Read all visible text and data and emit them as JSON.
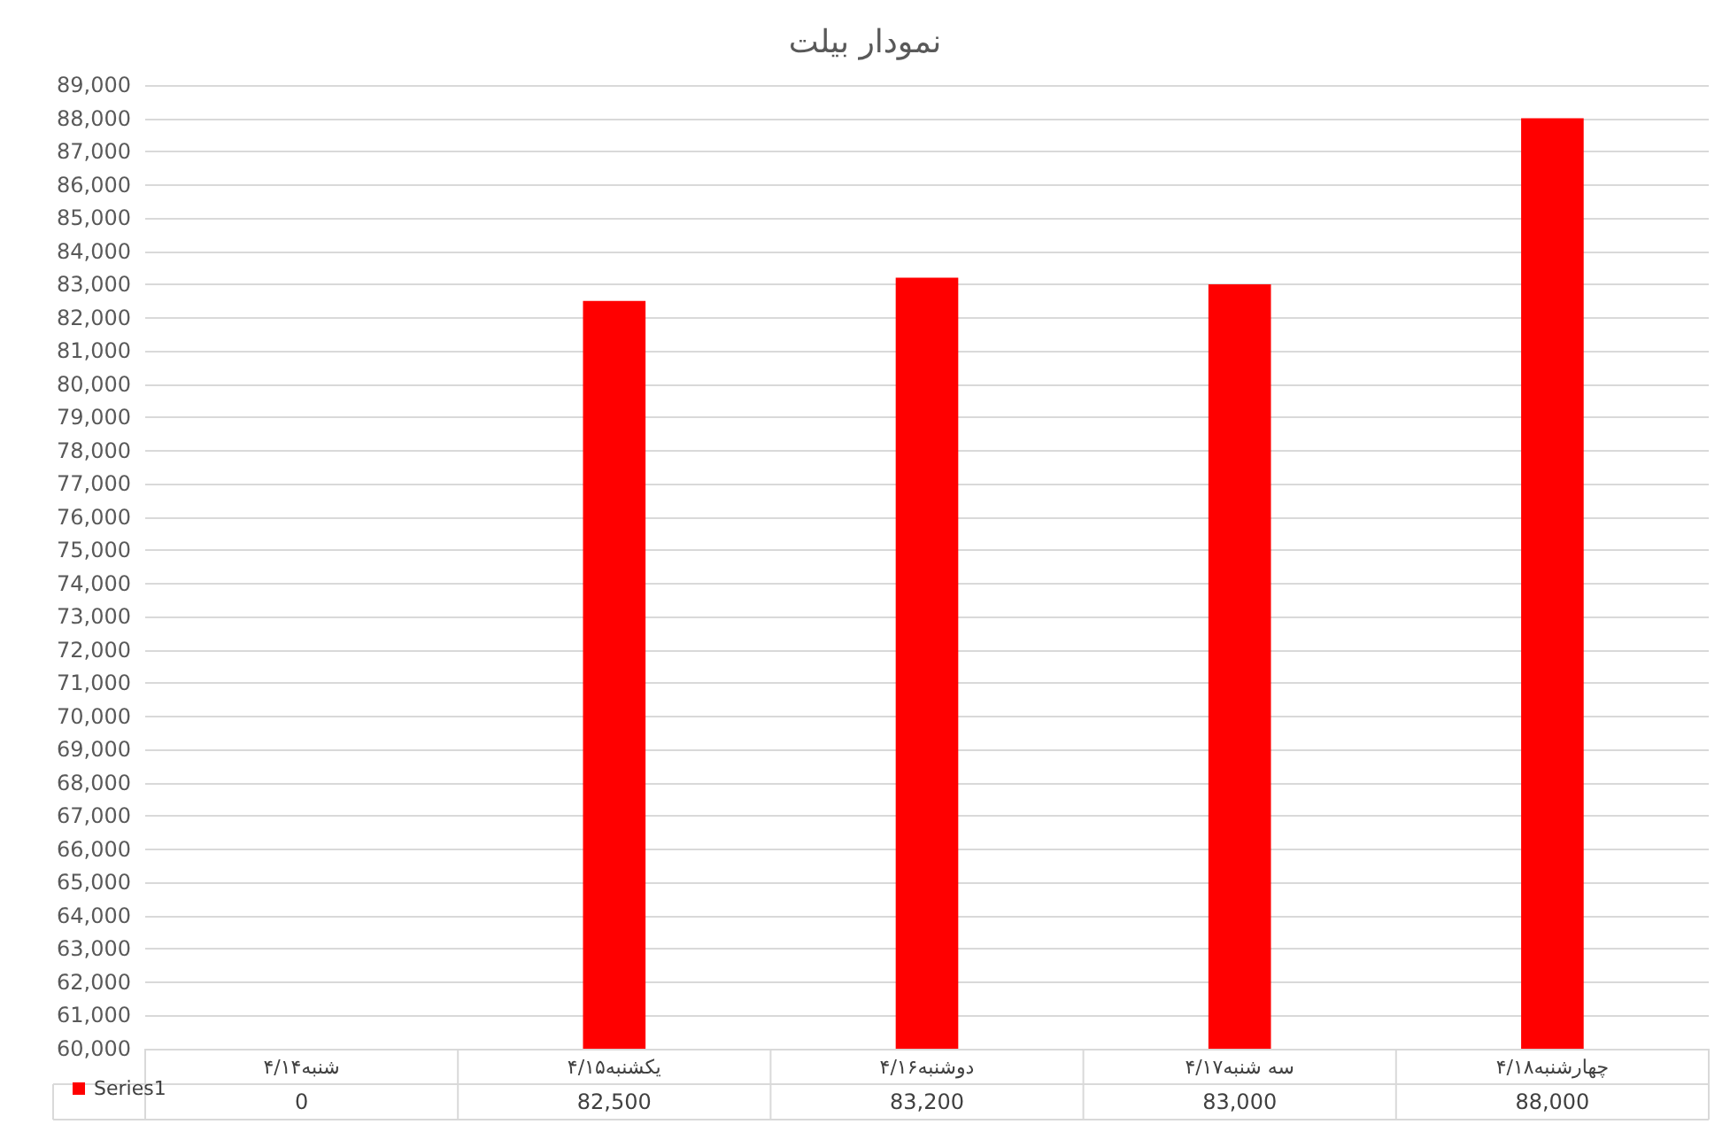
{
  "chart_data": {
    "type": "bar",
    "title": "نمودار بیلت",
    "categories": [
      "شنبه۴/۱۴",
      "یکشنبه۴/۱۵",
      "دوشنبه۴/۱۶",
      "سه شنبه۴/۱۷",
      "چهارشنبه۴/۱۸"
    ],
    "series": [
      {
        "name": "Series1",
        "color": "#ff0000",
        "values": [
          null,
          82500,
          83200,
          83000,
          88000
        ]
      }
    ],
    "value_labels": [
      "0",
      "82,500",
      "83,200",
      "83,000",
      "88,000"
    ],
    "ylim": [
      60000,
      89000
    ],
    "yticks": [
      {
        "value": 60000,
        "label": "60,000"
      },
      {
        "value": 61000,
        "label": "61,000"
      },
      {
        "value": 62000,
        "label": "62,000"
      },
      {
        "value": 63000,
        "label": "63,000"
      },
      {
        "value": 64000,
        "label": "64,000"
      },
      {
        "value": 65000,
        "label": "65,000"
      },
      {
        "value": 66000,
        "label": "66,000"
      },
      {
        "value": 67000,
        "label": "67,000"
      },
      {
        "value": 68000,
        "label": "68,000"
      },
      {
        "value": 69000,
        "label": "69,000"
      },
      {
        "value": 70000,
        "label": "70,000"
      },
      {
        "value": 71000,
        "label": "71,000"
      },
      {
        "value": 72000,
        "label": "72,000"
      },
      {
        "value": 73000,
        "label": "73,000"
      },
      {
        "value": 74000,
        "label": "74,000"
      },
      {
        "value": 75000,
        "label": "75,000"
      },
      {
        "value": 76000,
        "label": "76,000"
      },
      {
        "value": 77000,
        "label": "77,000"
      },
      {
        "value": 78000,
        "label": "78,000"
      },
      {
        "value": 79000,
        "label": "79,000"
      },
      {
        "value": 80000,
        "label": "80,000"
      },
      {
        "value": 81000,
        "label": "81,000"
      },
      {
        "value": 82000,
        "label": "82,000"
      },
      {
        "value": 83000,
        "label": "83,000"
      },
      {
        "value": 84000,
        "label": "84,000"
      },
      {
        "value": 85000,
        "label": "85,000"
      },
      {
        "value": 86000,
        "label": "86,000"
      },
      {
        "value": 87000,
        "label": "87,000"
      },
      {
        "value": 88000,
        "label": "88,000"
      },
      {
        "value": 89000,
        "label": "89,000"
      }
    ],
    "grid": "y",
    "legend": "bottom left"
  }
}
